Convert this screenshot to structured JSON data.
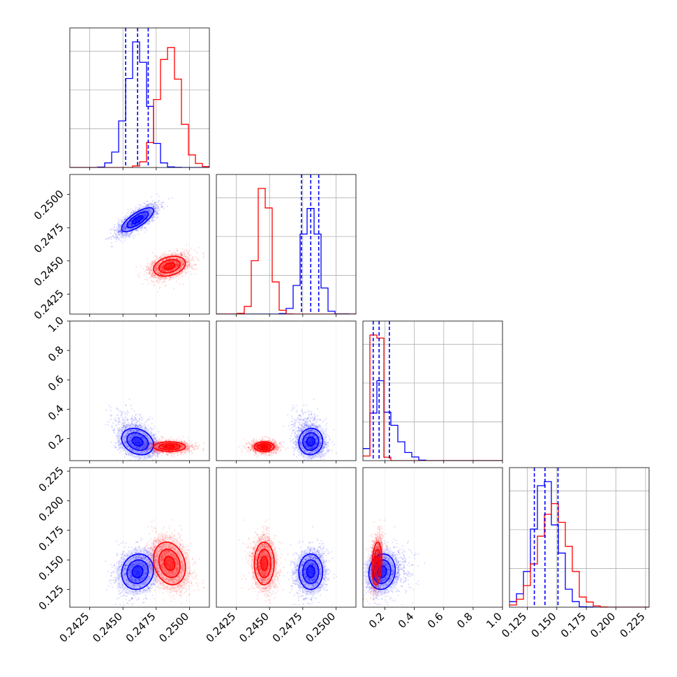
{
  "chart_data": {
    "type": "corner",
    "title": "",
    "parameters": [
      {
        "range": [
          0.241,
          0.2515
        ],
        "ticks": [
          0.2425,
          0.245,
          0.2475,
          0.25
        ],
        "tick_labels": [
          "0.2425",
          "0.2450",
          "0.2475",
          "0.2500"
        ]
      },
      {
        "range": [
          0.241,
          0.2515
        ],
        "ticks": [
          0.2425,
          0.245,
          0.2475,
          0.25
        ],
        "tick_labels": [
          "0.2425",
          "0.2450",
          "0.2475",
          "0.2500"
        ]
      },
      {
        "range": [
          0.05,
          1.0
        ],
        "ticks": [
          0.2,
          0.4,
          0.6,
          0.8,
          1.0
        ],
        "tick_labels": [
          "0.2",
          "0.4",
          "0.6",
          "0.8",
          "1.0"
        ],
        "y_tick_labels": [
          "0.2",
          "0.4",
          "0.6",
          "0.8",
          "1.0"
        ]
      },
      {
        "range": [
          0.11,
          0.228
        ],
        "ticks": [
          0.125,
          0.15,
          0.175,
          0.2,
          0.225
        ],
        "tick_labels": [
          "0.125",
          "0.150",
          "0.175",
          "0.200",
          "0.225"
        ]
      }
    ],
    "series": [
      {
        "color": "#0000ff",
        "mean": [
          0.2461,
          0.2481,
          0.18,
          0.14
        ],
        "std": [
          0.0008,
          0.0006,
          0.05,
          0.01
        ],
        "correlation": [
          [
            0,
            1,
            0.75
          ],
          [
            0,
            2,
            -0.25
          ],
          [
            0,
            3,
            0.1
          ],
          [
            1,
            2,
            0.05
          ],
          [
            1,
            3,
            0.0
          ],
          [
            2,
            3,
            0.1
          ]
        ],
        "quantiles": [
          [
            0.2452,
            0.2461,
            0.2469
          ],
          [
            0.2474,
            0.2481,
            0.2487
          ],
          [
            0.12,
            0.16,
            0.23
          ],
          [
            0.131,
            0.14,
            0.151
          ]
        ]
      },
      {
        "color": "#ff0000",
        "mean": [
          0.2485,
          0.2446,
          0.145,
          0.147
        ],
        "std": [
          0.0008,
          0.0005,
          0.022,
          0.012
        ],
        "correlation": [
          [
            0,
            1,
            0.3
          ],
          [
            0,
            2,
            0.0
          ],
          [
            0,
            3,
            -0.2
          ],
          [
            1,
            2,
            0.0
          ],
          [
            1,
            3,
            0.0
          ],
          [
            2,
            3,
            0.2
          ]
        ],
        "quantiles": null
      }
    ],
    "grid": true
  }
}
